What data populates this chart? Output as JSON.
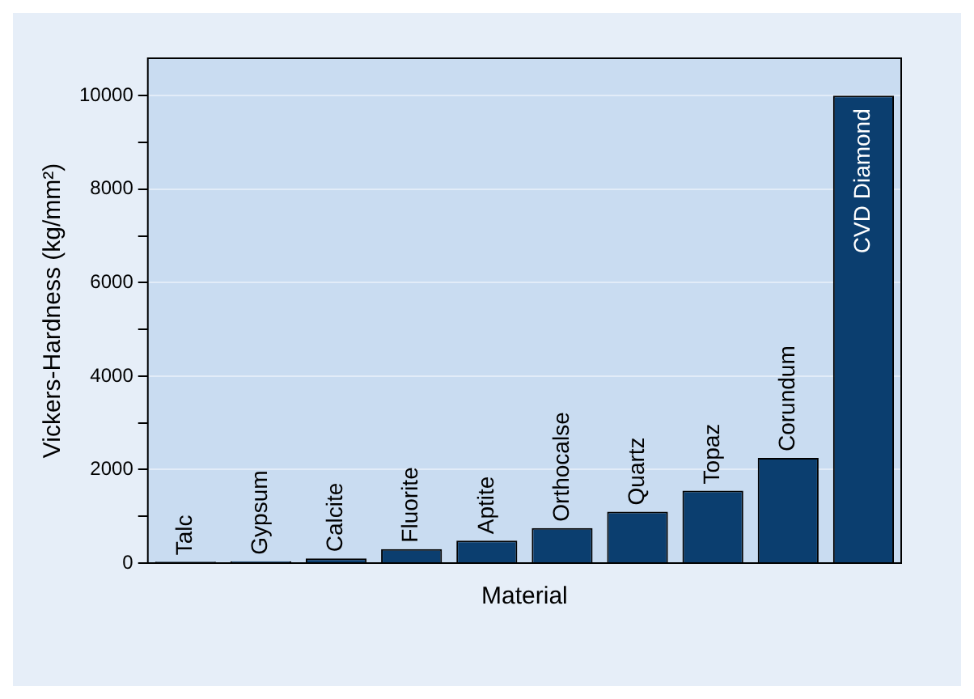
{
  "chart_data": {
    "type": "bar",
    "xlabel": "Material",
    "ylabel": "Vickers-Hardness (kg/mm²)",
    "categories": [
      "Talc",
      "Gypsum",
      "Calcite",
      "Fluorite",
      "Aptite",
      "Orthocalse",
      "Quartz",
      "Topaz",
      "Corundum",
      "CVD Diamond"
    ],
    "values": [
      30,
      40,
      100,
      300,
      480,
      750,
      1100,
      1550,
      2250,
      10000
    ],
    "color": "#0b3e6f",
    "ylim": [
      0,
      10800
    ],
    "yticks": [
      0,
      {
        "value": 1000,
        "label": null
      },
      2000,
      {
        "value": 3000,
        "label": null
      },
      4000,
      {
        "value": 5000,
        "label": null
      },
      6000,
      {
        "value": 7000,
        "label": null
      },
      8000,
      {
        "value": 9000,
        "label": null
      },
      10000
    ],
    "grid": "y",
    "tick_labels": "y",
    "legend": false
  }
}
